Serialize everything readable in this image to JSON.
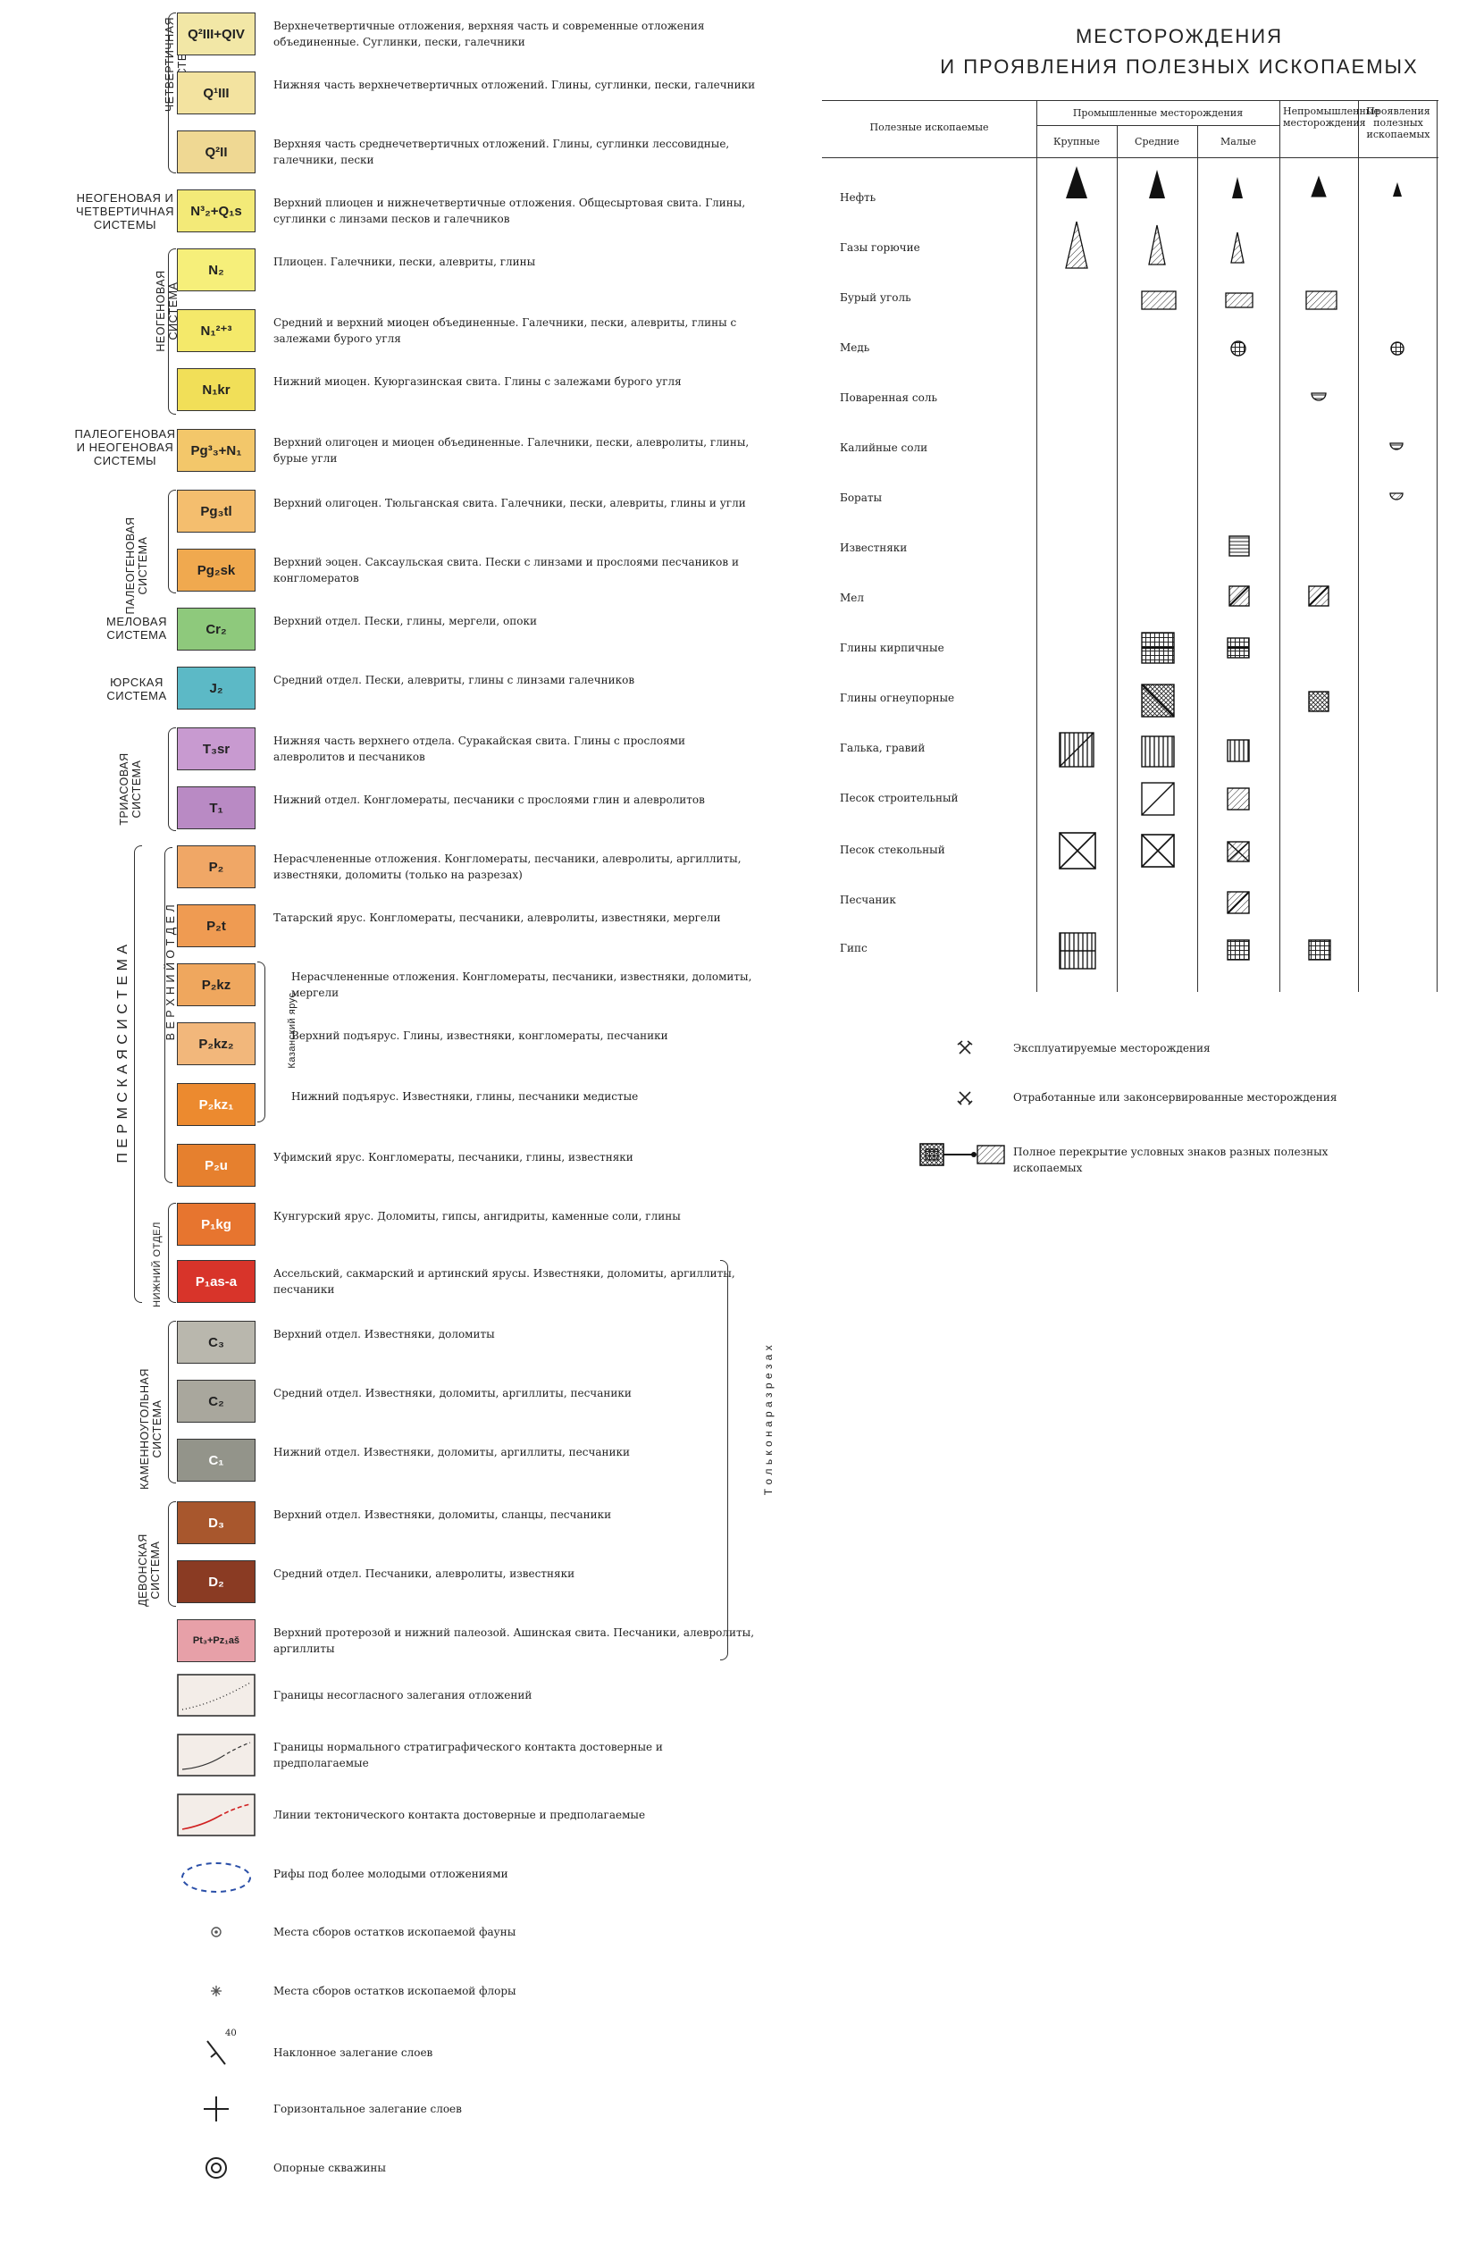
{
  "systems": [
    {
      "name": "ЧЕТВЕРТИЧНАЯ СИСТЕМА",
      "vertical": true
    },
    {
      "name": "НЕОГЕНОВАЯ И ЧЕТВЕРТИЧНАЯ СИСТЕМЫ",
      "vertical": false
    },
    {
      "name": "НЕОГЕНОВАЯ СИСТЕМА",
      "vertical": true
    },
    {
      "name": "ПАЛЕОГЕНОВАЯ И НЕОГЕНОВАЯ СИСТЕМЫ",
      "vertical": false
    },
    {
      "name": "ПАЛЕОГЕНОВАЯ СИСТЕМА",
      "vertical": true
    },
    {
      "name": "МЕЛОВАЯ СИСТЕМА",
      "vertical": false
    },
    {
      "name": "ЮРСКАЯ СИСТЕМА",
      "vertical": false
    },
    {
      "name": "ТРИАСОВАЯ СИСТЕМА",
      "vertical": true
    },
    {
      "name": "П Е Р М С К А Я   С И С Т Е М А",
      "vertical": true
    },
    {
      "name": "В Е Р Х Н И Й   О Т Д Е Л",
      "vertical": true
    },
    {
      "name": "НИЖНИЙ ОТДЕЛ",
      "vertical": true
    },
    {
      "name": "Казанский ярус",
      "vertical": true
    },
    {
      "name": "КАМЕННОУГОЛЬНАЯ СИСТЕМА",
      "vertical": true
    },
    {
      "name": "ДЕВОНСКАЯ СИСТЕМА",
      "vertical": true
    },
    {
      "name": "Т о л ь к о   н а   р а з р е з а х",
      "vertical": true
    }
  ],
  "units": [
    {
      "code": "Q²III+QIV",
      "color": "#f2e7a6",
      "desc": "Верхнечетвертичные отложения, верхняя часть и современные отложения объединенные. Суглинки, пески, галечники"
    },
    {
      "code": "Q¹III",
      "color": "#f3e3a0",
      "desc": "Нижняя часть верхнечетвертичных отложений. Глины, суглинки, пески, галечники"
    },
    {
      "code": "Q²II",
      "color": "#efd893",
      "desc": "Верхняя часть среднечетвертичных отложений. Глины, суглинки лессовидные, галечники, пески"
    },
    {
      "code": "N³₂+Q₁s",
      "color": "#f3ea78",
      "desc": "Верхний плиоцен и нижнечетвертичные отложения. Общесыртовая свита. Глины, суглинки с линзами песков и галечников"
    },
    {
      "code": "N₂",
      "color": "#f6ef7a",
      "desc": "Плиоцен. Галечники, пески, алевриты, глины"
    },
    {
      "code": "N₁²⁺³",
      "color": "#f4e96a",
      "desc": "Средний и верхний миоцен объединенные. Галечники, пески, алевриты, глины с залежами бурого угля"
    },
    {
      "code": "N₁kr",
      "color": "#f1df58",
      "desc": "Нижний миоцен. Куюргазинская свита. Глины с залежами бурого угля"
    },
    {
      "code": "Pg³₃+N₁",
      "color": "#f3c76a",
      "desc": "Верхний олигоцен и миоцен объединенные. Галечники, пески, алевролиты, глины, бурые угли"
    },
    {
      "code": "Pg₃tl",
      "color": "#f4be6e",
      "desc": "Верхний олигоцен. Тюльганская свита. Галечники, пески, алевриты, глины и угли"
    },
    {
      "code": "Pg₂sk",
      "color": "#f0a94f",
      "desc": "Верхний эоцен. Саксаульская свита. Пески с линзами и прослоями песчаников и конгломератов"
    },
    {
      "code": "Cr₂",
      "color": "#8ec97c",
      "desc": "Верхний отдел. Пески, глины, мергели, опоки"
    },
    {
      "code": "J₂",
      "color": "#5cb9c6",
      "desc": "Средний отдел. Пески, алевриты, глины с линзами галечников"
    },
    {
      "code": "T₃sr",
      "color": "#c89ad0",
      "desc": "Нижняя часть верхнего отдела. Суракайская свита. Глины с прослоями алевролитов и песчаников"
    },
    {
      "code": "T₁",
      "color": "#b98ac4",
      "desc": "Нижний отдел. Конгломераты, песчаники с прослоями глин и алевролитов"
    },
    {
      "code": "P₂",
      "color": "#f0a766",
      "desc": "Нерасчлененные отложения. Конгломераты, песчаники, алевролиты, аргиллиты, известняки, доломиты (только на разрезах)"
    },
    {
      "code": "P₂t",
      "color": "#ef9b52",
      "desc": "Татарский ярус. Конгломераты, песчаники, алевролиты, известняки, мергели"
    },
    {
      "code": "P₂kz",
      "color": "#efa75e",
      "desc": "Нерасчлененные отложения. Конгломераты, песчаники, известняки, доломиты, мергели"
    },
    {
      "code": "P₂kz₂",
      "color": "#f2b77b",
      "desc": "Верхний подъярус. Глины, известняки, конгломераты, песчаники"
    },
    {
      "code": "P₂kz₁",
      "color": "#ec8a2f",
      "desc": "Нижний подъярус. Известняки, глины, песчаники медистые"
    },
    {
      "code": "P₂u",
      "color": "#e6802e",
      "desc": "Уфимский ярус. Конгломераты, песчаники, глины, известняки"
    },
    {
      "code": "P₁kg",
      "color": "#e7752f",
      "desc": "Кунгурский ярус. Доломиты, гипсы, ангидриты, каменные соли, глины"
    },
    {
      "code": "P₁as-a",
      "color": "#d8342a",
      "desc": "Ассельский, сакмарский и артинский ярусы. Известняки, доломиты, аргиллиты, песчаники"
    },
    {
      "code": "C₃",
      "color": "#b9b7ad",
      "desc": "Верхний отдел. Известняки, доломиты"
    },
    {
      "code": "C₂",
      "color": "#a9a79d",
      "desc": "Средний отдел. Известняки, доломиты, аргиллиты, песчаники"
    },
    {
      "code": "C₁",
      "color": "#93948a",
      "desc": "Нижний отдел. Известняки, доломиты, аргиллиты, песчаники"
    },
    {
      "code": "D₃",
      "color": "#a8572d",
      "desc": "Верхний отдел. Известняки, доломиты, сланцы, песчаники"
    },
    {
      "code": "D₂",
      "color": "#8a3b23",
      "desc": "Средний отдел. Песчаники, алевролиты, известняки"
    },
    {
      "code": "Pt₃+Pz₁aš",
      "color": "#e7a0a8",
      "desc": "Верхний протерозой и нижний палеозой. Ашинская свита. Песчаники, алевролиты, аргиллиты"
    }
  ],
  "symbols": [
    {
      "icon": "unconformity-boundary-icon",
      "desc": "Границы несогласного залегания отложений"
    },
    {
      "icon": "normal-contact-boundary-icon",
      "desc": "Границы нормального стратиграфического контакта достоверные и предполагаемые"
    },
    {
      "icon": "tectonic-contact-icon",
      "desc": "Линии тектонического контакта достоверные и предполагаемые"
    },
    {
      "icon": "buried-reef-icon",
      "desc": "Рифы под более молодыми отложениями"
    },
    {
      "icon": "fauna-collection-icon",
      "desc": "Места сборов остатков ископаемой фауны"
    },
    {
      "icon": "flora-collection-icon",
      "desc": "Места сборов остатков ископаемой флоры"
    },
    {
      "icon": "inclined-bedding-icon",
      "desc": "Наклонное залегание слоев",
      "dip": "40"
    },
    {
      "icon": "horizontal-bedding-icon",
      "desc": "Горизонтальное залегание слоев"
    },
    {
      "icon": "reference-borehole-icon",
      "desc": "Опорные скважины"
    }
  ],
  "minerals": {
    "title_line1": "МЕСТОРОЖДЕНИЯ",
    "title_line2": "И ПРОЯВЛЕНИЯ ПОЛЕЗНЫХ ИСКОПАЕМЫХ",
    "col_minerals": "Полезные ископаемые",
    "col_industrial": "Промышленные месторождения",
    "col_large": "Крупные",
    "col_medium": "Средние",
    "col_small": "Малые",
    "col_nonindustrial": "Непромышленные месторождения",
    "col_occurrences": "Проявления полезных ископаемых",
    "rows": [
      {
        "name": "Нефть"
      },
      {
        "name": "Газы горючие"
      },
      {
        "name": "Бурый уголь"
      },
      {
        "name": "Медь"
      },
      {
        "name": "Поваренная соль"
      },
      {
        "name": "Калийные соли"
      },
      {
        "name": "Бораты"
      },
      {
        "name": "Известняки"
      },
      {
        "name": "Мел"
      },
      {
        "name": "Глины кирпичные"
      },
      {
        "name": "Глины огнеупорные"
      },
      {
        "name": "Галька, гравий"
      },
      {
        "name": "Песок строительный"
      },
      {
        "name": "Песок стекольный"
      },
      {
        "name": "Песчаник"
      },
      {
        "name": "Гипс"
      }
    ],
    "legend": [
      {
        "icon": "exploited-deposit-icon",
        "text": "Эксплуатируемые месторождения"
      },
      {
        "icon": "worked-out-deposit-icon",
        "text": "Отработанные или законсервированные месторождения"
      },
      {
        "icon": "overlap-symbol-icon",
        "text": "Полное перекрытие условных знаков разных полезных ископаемых"
      }
    ]
  }
}
